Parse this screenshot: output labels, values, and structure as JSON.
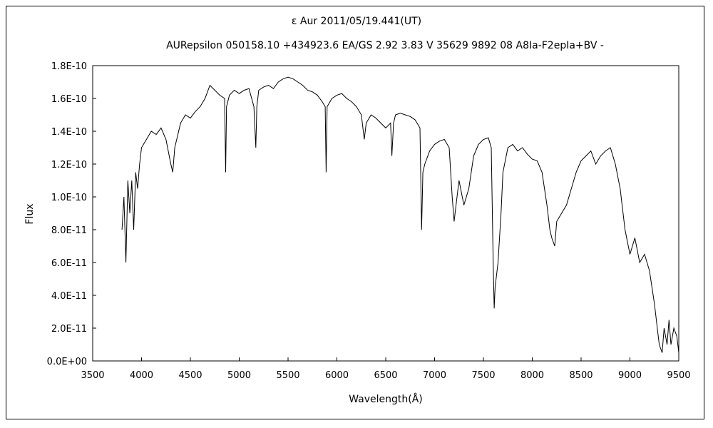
{
  "chart_data": {
    "type": "line",
    "title": "ε  Aur   2011/05/19.441(UT)",
    "subtitle": "AURepsilon 050158.10 +434923.6 EA/GS 2.92 3.83 V 35629 9892 08 A8Ia-F2epIa+BV -",
    "xlabel": "Wavelength(Å)",
    "ylabel": "Flux",
    "xlim": [
      3500,
      9500
    ],
    "ylim": [
      0,
      1.8e-10
    ],
    "x_ticks": [
      3500,
      4000,
      4500,
      5000,
      5500,
      6000,
      6500,
      7000,
      7500,
      8000,
      8500,
      9000,
      9500
    ],
    "x_tick_labels": [
      "3500",
      "4000",
      "4500",
      "5000",
      "5500",
      "6000",
      "6500",
      "7000",
      "7500",
      "8000",
      "8500",
      "9000",
      "9500"
    ],
    "y_ticks": [
      0,
      2e-11,
      4e-11,
      6e-11,
      8e-11,
      1e-10,
      1.2e-10,
      1.4e-10,
      1.6e-10,
      1.8e-10
    ],
    "y_tick_labels": [
      "0.0E+00",
      "2.0E-11",
      "4.0E-11",
      "6.0E-11",
      "8.0E-11",
      "1.0E-10",
      "1.2E-10",
      "1.4E-10",
      "1.6E-10",
      "1.8E-10"
    ],
    "grid": false,
    "series": [
      {
        "color": "#000000",
        "x": [
          3800,
          3820,
          3840,
          3860,
          3880,
          3900,
          3920,
          3940,
          3960,
          3980,
          4000,
          4050,
          4100,
          4150,
          4200,
          4250,
          4300,
          4320,
          4340,
          4400,
          4450,
          4500,
          4550,
          4600,
          4650,
          4700,
          4750,
          4800,
          4850,
          4861,
          4870,
          4900,
          4950,
          5000,
          5050,
          5100,
          5150,
          5170,
          5180,
          5200,
          5250,
          5300,
          5350,
          5400,
          5450,
          5500,
          5550,
          5600,
          5650,
          5700,
          5750,
          5800,
          5850,
          5880,
          5890,
          5900,
          5950,
          6000,
          6050,
          6100,
          6150,
          6200,
          6250,
          6280,
          6300,
          6350,
          6400,
          6450,
          6500,
          6550,
          6563,
          6580,
          6600,
          6650,
          6700,
          6750,
          6800,
          6850,
          6867,
          6880,
          6900,
          6950,
          7000,
          7050,
          7100,
          7150,
          7180,
          7200,
          7220,
          7250,
          7300,
          7350,
          7400,
          7450,
          7500,
          7550,
          7580,
          7600,
          7610,
          7620,
          7650,
          7680,
          7700,
          7750,
          7800,
          7850,
          7900,
          7950,
          8000,
          8050,
          8100,
          8150,
          8180,
          8200,
          8230,
          8250,
          8300,
          8350,
          8400,
          8450,
          8500,
          8550,
          8600,
          8650,
          8700,
          8750,
          8800,
          8850,
          8900,
          8950,
          9000,
          9050,
          9100,
          9150,
          9200,
          9250,
          9300,
          9330,
          9350,
          9380,
          9400,
          9420,
          9450,
          9480,
          9500
        ],
        "y": [
          8e-11,
          1e-10,
          6e-11,
          1.1e-10,
          9e-11,
          1.1e-10,
          8e-11,
          1.15e-10,
          1.05e-10,
          1.2e-10,
          1.3e-10,
          1.35e-10,
          1.4e-10,
          1.38e-10,
          1.42e-10,
          1.35e-10,
          1.2e-10,
          1.15e-10,
          1.3e-10,
          1.45e-10,
          1.5e-10,
          1.48e-10,
          1.52e-10,
          1.55e-10,
          1.6e-10,
          1.68e-10,
          1.65e-10,
          1.62e-10,
          1.6e-10,
          1.15e-10,
          1.55e-10,
          1.62e-10,
          1.65e-10,
          1.63e-10,
          1.65e-10,
          1.66e-10,
          1.55e-10,
          1.3e-10,
          1.55e-10,
          1.65e-10,
          1.67e-10,
          1.68e-10,
          1.66e-10,
          1.7e-10,
          1.72e-10,
          1.73e-10,
          1.72e-10,
          1.7e-10,
          1.68e-10,
          1.65e-10,
          1.64e-10,
          1.62e-10,
          1.58e-10,
          1.55e-10,
          1.15e-10,
          1.55e-10,
          1.6e-10,
          1.62e-10,
          1.63e-10,
          1.6e-10,
          1.58e-10,
          1.55e-10,
          1.5e-10,
          1.35e-10,
          1.45e-10,
          1.5e-10,
          1.48e-10,
          1.45e-10,
          1.42e-10,
          1.45e-10,
          1.25e-10,
          1.45e-10,
          1.5e-10,
          1.51e-10,
          1.5e-10,
          1.49e-10,
          1.47e-10,
          1.42e-10,
          8e-11,
          1.15e-10,
          1.2e-10,
          1.28e-10,
          1.32e-10,
          1.34e-10,
          1.35e-10,
          1.3e-10,
          1e-10,
          8.5e-11,
          9.5e-11,
          1.1e-10,
          9.5e-11,
          1.05e-10,
          1.25e-10,
          1.32e-10,
          1.35e-10,
          1.36e-10,
          1.3e-10,
          6e-11,
          3.2e-11,
          4.5e-11,
          6e-11,
          9e-11,
          1.15e-10,
          1.3e-10,
          1.32e-10,
          1.28e-10,
          1.3e-10,
          1.26e-10,
          1.23e-10,
          1.22e-10,
          1.15e-10,
          9.5e-11,
          8e-11,
          7.5e-11,
          7e-11,
          8.5e-11,
          9e-11,
          9.5e-11,
          1.05e-10,
          1.15e-10,
          1.22e-10,
          1.25e-10,
          1.28e-10,
          1.2e-10,
          1.25e-10,
          1.28e-10,
          1.3e-10,
          1.2e-10,
          1.05e-10,
          8e-11,
          6.5e-11,
          7.5e-11,
          6e-11,
          6.5e-11,
          5.5e-11,
          3.5e-11,
          1e-11,
          5e-12,
          2e-11,
          1e-11,
          2.5e-11,
          1e-11,
          2e-11,
          1.5e-11,
          5e-12
        ]
      }
    ]
  }
}
